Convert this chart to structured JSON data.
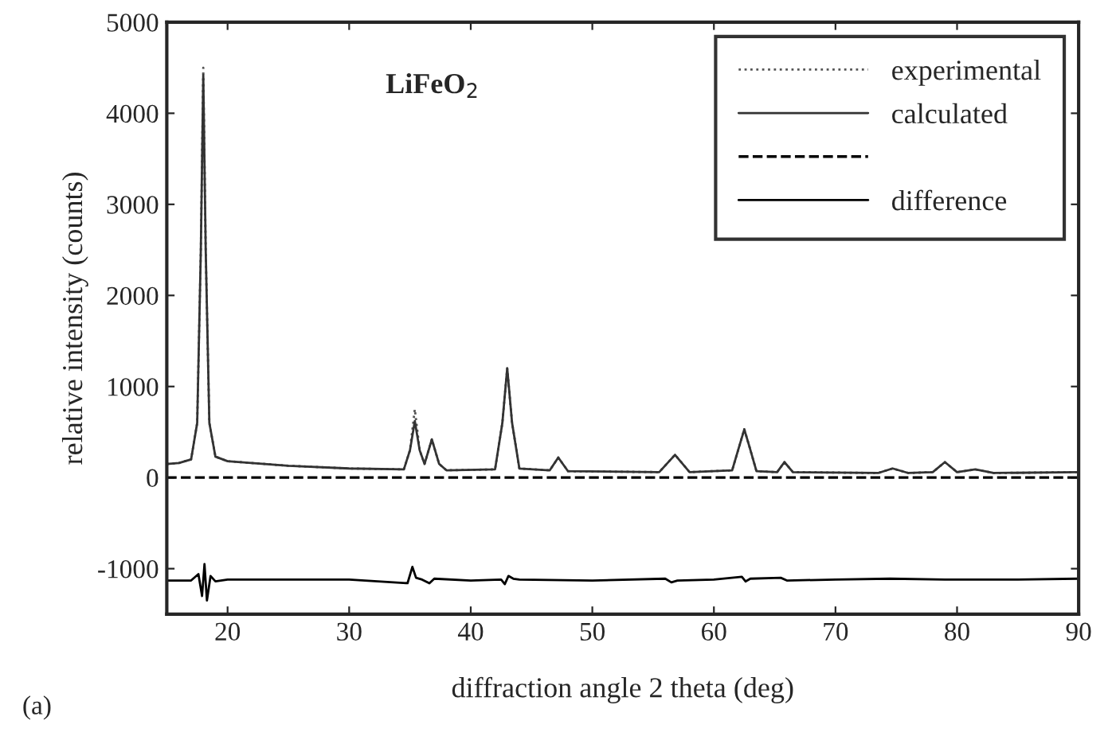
{
  "chart_data": {
    "type": "line",
    "xlabel": "diffraction angle 2 theta (deg)",
    "ylabel": "relative intensity (counts)",
    "xlim": [
      15,
      90
    ],
    "xticks": [
      20,
      30,
      40,
      50,
      60,
      70,
      80,
      90
    ],
    "ylim": [
      -1500,
      5000
    ],
    "yticks": [
      -1000,
      0,
      1000,
      2000,
      3000,
      4000,
      5000
    ],
    "grid": false,
    "legend": "top right",
    "annotations": [
      "LiFeO$_{2}$",
      "(a)"
    ],
    "ref_lines": [
      {
        "axis": "y",
        "value": 0,
        "line_style": "dashed",
        "color": "#000000"
      }
    ],
    "series": [
      {
        "name": "experimental",
        "color": "#555555",
        "line_style": "dotted",
        "x": [
          15,
          16,
          17,
          17.5,
          17.8,
          18.0,
          18.2,
          18.5,
          19,
          20,
          25,
          30,
          34.5,
          35.0,
          35.4,
          35.8,
          36.2,
          36.8,
          37.4,
          38,
          42,
          42.6,
          43.0,
          43.4,
          44,
          46.5,
          47.2,
          48,
          55.5,
          56.8,
          58,
          61.5,
          62.1,
          62.5,
          62.9,
          63.5,
          65.2,
          65.8,
          66.5,
          73.5,
          74.7,
          76,
          78,
          79,
          80,
          81.5,
          83,
          90
        ],
        "values": [
          150,
          160,
          200,
          600,
          2500,
          4500,
          2500,
          600,
          230,
          180,
          130,
          100,
          90,
          300,
          750,
          300,
          150,
          420,
          150,
          80,
          90,
          600,
          1200,
          600,
          100,
          80,
          220,
          70,
          60,
          250,
          60,
          80,
          350,
          530,
          350,
          70,
          60,
          170,
          60,
          50,
          100,
          50,
          60,
          170,
          60,
          90,
          50,
          60
        ]
      },
      {
        "name": "calculated",
        "color": "#333333",
        "line_style": "solid",
        "x": [
          15,
          16,
          17,
          17.5,
          17.8,
          18.0,
          18.2,
          18.5,
          19,
          20,
          25,
          30,
          34.5,
          35.0,
          35.4,
          35.8,
          36.2,
          36.8,
          37.4,
          38,
          42,
          42.6,
          43.0,
          43.4,
          44,
          46.5,
          47.2,
          48,
          55.5,
          56.8,
          58,
          61.5,
          62.1,
          62.5,
          62.9,
          63.5,
          65.2,
          65.8,
          66.5,
          73.5,
          74.7,
          76,
          78,
          79,
          80,
          81.5,
          83,
          90
        ],
        "values": [
          150,
          160,
          200,
          600,
          2500,
          4420,
          2500,
          600,
          230,
          180,
          130,
          100,
          90,
          300,
          620,
          300,
          150,
          420,
          150,
          80,
          90,
          600,
          1200,
          600,
          100,
          80,
          220,
          70,
          60,
          250,
          60,
          80,
          350,
          530,
          350,
          70,
          60,
          170,
          60,
          50,
          100,
          50,
          60,
          170,
          60,
          90,
          50,
          60
        ]
      },
      {
        "name": "difference",
        "color": "#000000",
        "line_style": "solid",
        "x": [
          15,
          17,
          17.6,
          17.9,
          18.1,
          18.3,
          18.6,
          19,
          20,
          30,
          34.8,
          35.2,
          35.5,
          36,
          36.6,
          37,
          40,
          42.5,
          42.8,
          43.1,
          43.5,
          44,
          50,
          56,
          56.5,
          57,
          60,
          62.3,
          62.6,
          63,
          65.5,
          66,
          70,
          74.5,
          79,
          85,
          90
        ],
        "values": [
          -1130,
          -1130,
          -1060,
          -1300,
          -950,
          -1350,
          -1080,
          -1140,
          -1120,
          -1120,
          -1160,
          -980,
          -1100,
          -1120,
          -1160,
          -1110,
          -1130,
          -1120,
          -1170,
          -1080,
          -1110,
          -1120,
          -1130,
          -1110,
          -1150,
          -1130,
          -1120,
          -1090,
          -1140,
          -1110,
          -1100,
          -1130,
          -1120,
          -1110,
          -1120,
          -1120,
          -1110
        ]
      }
    ]
  }
}
